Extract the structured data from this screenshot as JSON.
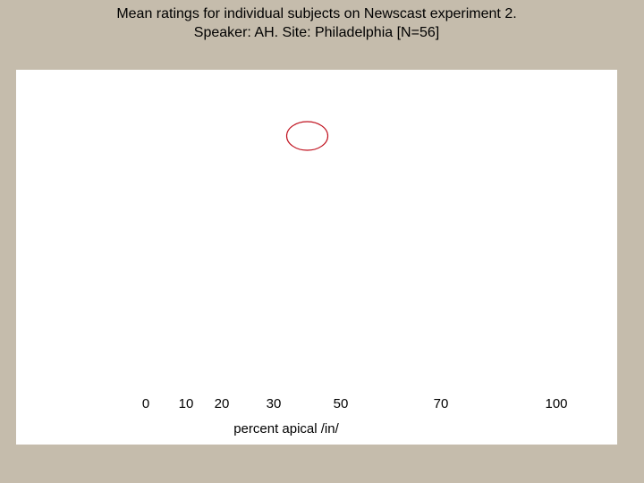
{
  "title": {
    "line1": "Mean ratings for individual subjects on Newscast experiment 2.",
    "line2": "Speaker: AH. Site: Philadelphia [N=56]"
  },
  "colors": {
    "background": "#c5bcac",
    "plot_area": "#ffffff",
    "marker": "#c0121f"
  },
  "chart_data": {
    "type": "scatter",
    "title": "Mean ratings for individual subjects on Newscast experiment 2.",
    "subtitle": "Speaker: AH. Site: Philadelphia [N=56]",
    "xlabel": "percent apical /in/",
    "ylabel": "",
    "x_ticks": [
      "0",
      "10",
      "20",
      "30",
      "50",
      "70",
      "100"
    ],
    "x_tick_values": [
      0,
      10,
      20,
      30,
      50,
      70,
      100
    ],
    "grid": false,
    "series": [
      {
        "marker": "open-circle",
        "color": "#c0121f",
        "points": [
          {
            "x": 40
          }
        ]
      }
    ]
  }
}
